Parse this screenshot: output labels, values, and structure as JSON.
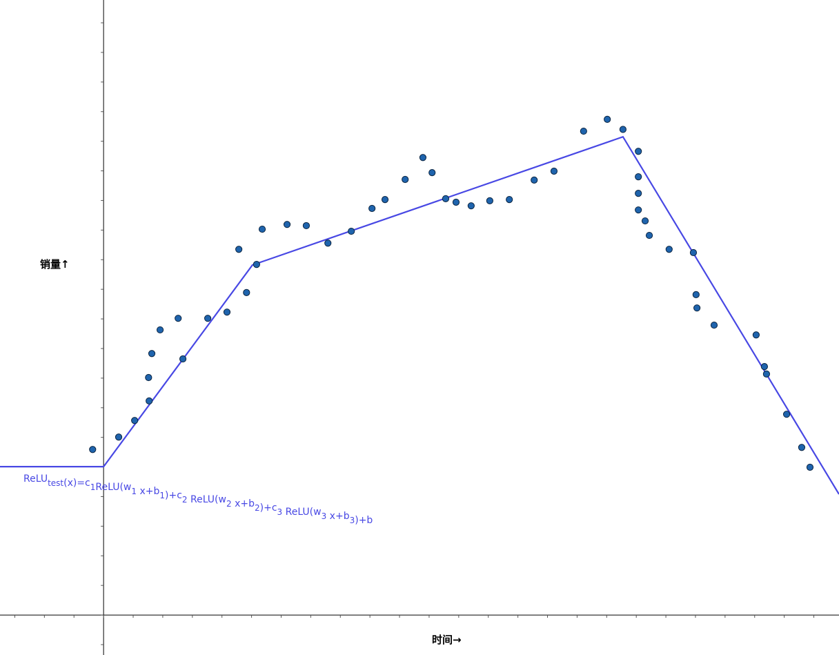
{
  "chart_data": {
    "type": "scatter",
    "x_label": "时间→",
    "y_label": "销量↑",
    "xlim": [
      -3.5,
      24.85
    ],
    "ylim": [
      -1.35,
      20.77
    ],
    "xticks": [
      -3,
      -2,
      -1,
      0,
      1,
      2,
      3,
      4,
      5,
      6,
      7,
      8,
      9,
      10,
      11,
      12,
      13,
      14,
      15,
      16,
      17,
      18,
      19,
      20,
      21,
      22,
      23,
      24
    ],
    "yticks": [
      -1,
      0,
      1,
      2,
      3,
      4,
      5,
      6,
      7,
      8,
      9,
      10,
      11,
      12,
      13,
      14,
      15,
      16,
      17,
      18,
      19,
      20
    ],
    "grid": false,
    "points": {
      "color": "#1f64ad",
      "x": [
        -0.37,
        0.51,
        1.05,
        1.54,
        1.52,
        1.63,
        1.91,
        2.52,
        2.68,
        3.52,
        4.17,
        4.57,
        4.83,
        5.17,
        5.36,
        6.2,
        6.85,
        7.58,
        8.37,
        9.07,
        9.51,
        10.19,
        10.79,
        11.1,
        11.56,
        11.91,
        12.42,
        13.05,
        13.71,
        14.55,
        15.22,
        16.22,
        17.02,
        17.55,
        18.07,
        18.07,
        18.07,
        18.07,
        18.3,
        18.44,
        19.11,
        19.93,
        20.02,
        20.05,
        20.63,
        22.05,
        22.33,
        22.4,
        23.08,
        23.59,
        23.87
      ],
      "y": [
        5.59,
        6.01,
        6.57,
        7.23,
        8.02,
        8.83,
        9.63,
        10.02,
        8.65,
        10.02,
        10.23,
        12.35,
        10.89,
        11.84,
        13.03,
        13.19,
        13.15,
        12.56,
        12.96,
        13.73,
        14.03,
        14.71,
        15.45,
        14.94,
        14.06,
        13.94,
        13.82,
        13.99,
        14.03,
        14.69,
        14.99,
        16.34,
        16.74,
        16.4,
        15.66,
        14.8,
        14.24,
        13.68,
        13.31,
        12.82,
        12.35,
        12.24,
        10.82,
        10.37,
        9.79,
        9.46,
        8.39,
        8.14,
        6.78,
        5.66,
        4.99
      ]
    },
    "line": {
      "color": "#4848e4",
      "x": [
        -3.5,
        0,
        5.03,
        17.55,
        24.85
      ],
      "y": [
        5.01,
        5.01,
        11.82,
        16.15,
        4.08
      ]
    },
    "annotation": [
      {
        "text": "ReLU",
        "sub": "test"
      },
      {
        "text": "(x)=c",
        "sub": "1"
      },
      {
        "text": "ReLU(w",
        "sub": "1"
      },
      {
        "text": " x+b",
        "sub": "1"
      },
      {
        "text": ")+c",
        "sub": "2"
      },
      {
        "text": " ReLU(w",
        "sub": "2"
      },
      {
        "text": " x+b",
        "sub": "2"
      },
      {
        "text": ")+c",
        "sub": "3"
      },
      {
        "text": " ReLU(w",
        "sub": "3"
      },
      {
        "text": " x+b",
        "sub": "3"
      },
      {
        "text": ")+b"
      }
    ]
  }
}
